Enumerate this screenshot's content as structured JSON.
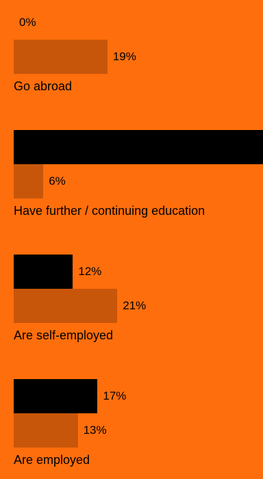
{
  "chart_data": {
    "type": "bar",
    "orientation": "horizontal",
    "categories": [
      "Go abroad",
      "Have further / continuing education",
      "Are self-employed",
      "Are employed"
    ],
    "series": [
      {
        "values": [
          0,
          51,
          12,
          17
        ]
      },
      {
        "values": [
          19,
          6,
          21,
          13
        ]
      }
    ],
    "value_labels": [
      [
        "0%",
        "",
        "12%",
        "17%"
      ],
      [
        "19%",
        "6%",
        "21%",
        "13%"
      ]
    ],
    "grid": false,
    "legend": "none"
  },
  "colors": {
    "background": "#FF6E0C",
    "series_1": "#000000",
    "series_2": "#C8560A",
    "text": "#000000"
  }
}
